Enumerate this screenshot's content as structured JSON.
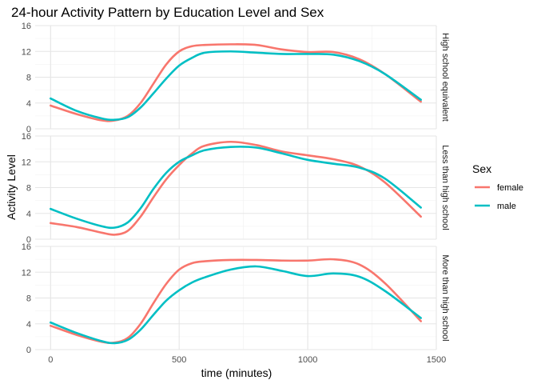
{
  "chart_data": {
    "type": "line",
    "title": "24-hour Activity Pattern by Education Level and Sex",
    "xlabel": "time (minutes)",
    "ylabel": "Activity Level",
    "xlim": [
      -60,
      1500
    ],
    "ylim": [
      0,
      16
    ],
    "x_ticks": [
      0,
      500,
      1000,
      1500
    ],
    "y_ticks": [
      0,
      4,
      8,
      12,
      16
    ],
    "grid": true,
    "legend": {
      "title": "Sex",
      "position": "right"
    },
    "series_colors": {
      "female": "#F8766D",
      "male": "#00BFC4"
    },
    "panels": [
      {
        "label": "High school equivalent",
        "series": [
          {
            "name": "female",
            "x": [
              0,
              100,
              200,
              250,
              300,
              350,
              400,
              450,
              500,
              550,
              600,
              700,
              800,
              900,
              1000,
              1100,
              1200,
              1300,
              1440
            ],
            "y": [
              3.6,
              2.3,
              1.3,
              1.3,
              2.0,
              4.0,
              7.0,
              10.0,
              12.0,
              12.8,
              13.0,
              13.1,
              13.0,
              12.3,
              11.9,
              11.9,
              10.8,
              8.5,
              4.2
            ]
          },
          {
            "name": "male",
            "x": [
              0,
              100,
              200,
              250,
              300,
              350,
              400,
              450,
              500,
              550,
              600,
              700,
              800,
              900,
              1000,
              1100,
              1200,
              1300,
              1440
            ],
            "y": [
              4.7,
              2.8,
              1.6,
              1.4,
              1.8,
              3.3,
              5.5,
              7.8,
              9.8,
              11.0,
              11.8,
              12.0,
              11.8,
              11.6,
              11.6,
              11.5,
              10.5,
              8.5,
              4.5
            ]
          }
        ]
      },
      {
        "label": "Less than high school",
        "series": [
          {
            "name": "female",
            "x": [
              0,
              100,
              200,
              250,
              300,
              350,
              400,
              450,
              500,
              550,
              600,
              700,
              800,
              900,
              1000,
              1100,
              1200,
              1300,
              1440
            ],
            "y": [
              2.5,
              1.9,
              1.0,
              0.7,
              1.3,
              3.5,
              6.5,
              9.3,
              11.5,
              13.3,
              14.5,
              15.1,
              14.6,
              13.6,
              13.0,
              12.4,
              11.3,
              8.8,
              3.5
            ]
          },
          {
            "name": "male",
            "x": [
              0,
              100,
              200,
              250,
              300,
              350,
              400,
              450,
              500,
              550,
              600,
              700,
              800,
              900,
              1000,
              1100,
              1200,
              1300,
              1440
            ],
            "y": [
              4.7,
              3.2,
              2.0,
              1.8,
              2.6,
              4.8,
              7.8,
              10.3,
              12.0,
              13.0,
              13.8,
              14.3,
              14.2,
              13.3,
              12.3,
              11.7,
              11.1,
              9.4,
              4.9
            ]
          }
        ]
      },
      {
        "label": "More than high school",
        "series": [
          {
            "name": "female",
            "x": [
              0,
              100,
              200,
              250,
              300,
              350,
              400,
              450,
              500,
              550,
              600,
              700,
              800,
              900,
              1000,
              1100,
              1200,
              1300,
              1440
            ],
            "y": [
              3.7,
              2.3,
              1.2,
              1.1,
              1.8,
              4.0,
              7.2,
              10.2,
              12.4,
              13.4,
              13.7,
              13.9,
              13.9,
              13.8,
              13.8,
              14.0,
              13.2,
              10.3,
              4.4
            ]
          },
          {
            "name": "male",
            "x": [
              0,
              100,
              200,
              250,
              300,
              350,
              400,
              450,
              500,
              550,
              600,
              700,
              800,
              900,
              1000,
              1100,
              1200,
              1300,
              1440
            ],
            "y": [
              4.2,
              2.6,
              1.3,
              1.0,
              1.5,
              3.1,
              5.4,
              7.6,
              9.2,
              10.4,
              11.2,
              12.4,
              12.9,
              12.2,
              11.4,
              11.8,
              11.3,
              9.1,
              4.9
            ]
          }
        ]
      }
    ]
  }
}
